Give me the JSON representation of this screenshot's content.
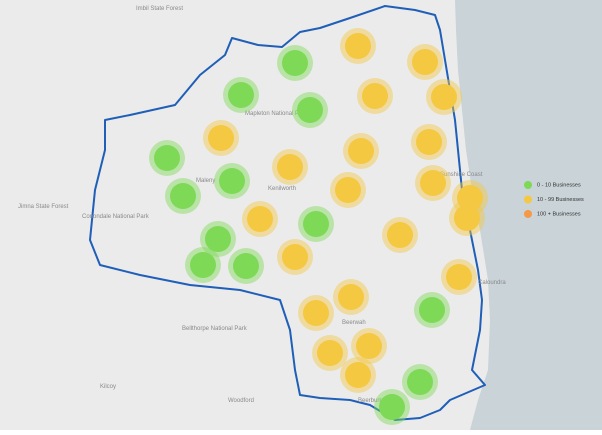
{
  "legend": {
    "items": [
      {
        "label": "0 - 10 Businesses",
        "color": "#7ed957"
      },
      {
        "label": "10 - 99 Businesses",
        "color": "#f5c842"
      },
      {
        "label": "100 + Businesses",
        "color": "#f39a4a"
      }
    ]
  },
  "places": [
    "Sunshine Coast",
    "Caloundra",
    "Beerwah",
    "Beerburrum",
    "Woodford",
    "Kilcoy",
    "Maleny",
    "Kenilworth",
    "Jimna State Forest",
    "Conondale National Park",
    "Mapleton National Park",
    "Bellthorpe National Park",
    "Imbil State Forest"
  ]
}
